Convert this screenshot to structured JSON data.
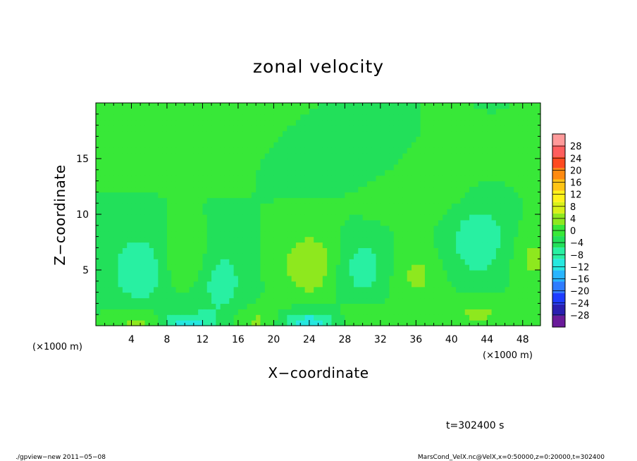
{
  "chart_data": {
    "type": "heatmap",
    "title": "zonal velocity",
    "xlabel": "X−coordinate",
    "ylabel": "Z−coordinate",
    "x_unit_label": "(×1000 m)",
    "y_unit_label": "(×1000 m)",
    "xlim": [
      0,
      50
    ],
    "ylim": [
      0,
      20
    ],
    "x_ticks": [
      4,
      8,
      12,
      16,
      20,
      24,
      28,
      32,
      36,
      40,
      44,
      48
    ],
    "x_tick_labels": [
      "4",
      "8",
      "12",
      "16",
      "20",
      "24",
      "28",
      "32",
      "36",
      "40",
      "44",
      "48"
    ],
    "y_ticks": [
      5,
      10,
      15
    ],
    "y_tick_labels": [
      "5",
      "10",
      "15"
    ],
    "colorbar": {
      "levels": [
        -32,
        -28,
        -24,
        -20,
        -16,
        -12,
        -8,
        -4,
        0,
        4,
        8,
        12,
        16,
        20,
        24,
        28,
        32
      ],
      "tick_values": [
        -28,
        -24,
        -20,
        -16,
        -12,
        -8,
        -4,
        0,
        4,
        8,
        12,
        16,
        20,
        24,
        28
      ],
      "tick_labels": [
        "−28",
        "−24",
        "−20",
        "−16",
        "−12",
        "−8",
        "−4",
        "0",
        "4",
        "8",
        "12",
        "16",
        "20",
        "24",
        "28"
      ],
      "colors": [
        "#6a1b9a",
        "#2a1fb0",
        "#1e3cff",
        "#2f7cff",
        "#28b4ff",
        "#26e8e0",
        "#28f0a2",
        "#22e05a",
        "#38e838",
        "#8ee81e",
        "#d8f018",
        "#fff21a",
        "#ffc414",
        "#ff8a10",
        "#ff4a20",
        "#ff5e5e",
        "#ff9a9a"
      ]
    },
    "field": {
      "background": 0,
      "features": [
        {
          "x": 5,
          "z": 5,
          "value": -8,
          "sx": 2.2,
          "sz": 2.2
        },
        {
          "x": 10,
          "z": 6,
          "value": 5,
          "sx": 2.0,
          "sz": 1.8
        },
        {
          "x": 14,
          "z": 4,
          "value": -6,
          "sx": 2.0,
          "sz": 2.5
        },
        {
          "x": 24,
          "z": 5.5,
          "value": 8,
          "sx": 2.2,
          "sz": 2.0
        },
        {
          "x": 30,
          "z": 5.2,
          "value": -6,
          "sx": 2.2,
          "sz": 2.0
        },
        {
          "x": 36,
          "z": 4.5,
          "value": 5,
          "sx": 2.0,
          "sz": 1.8
        },
        {
          "x": 43,
          "z": 8,
          "value": -7,
          "sx": 2.5,
          "sz": 2.8
        },
        {
          "x": 49,
          "z": 6,
          "value": 5,
          "sx": 1.6,
          "sz": 2.0
        },
        {
          "x": 5,
          "z": 0.3,
          "value": 6,
          "sx": 2.0,
          "sz": 0.8
        },
        {
          "x": 10,
          "z": 0.2,
          "value": -10,
          "sx": 2.2,
          "sz": 0.7
        },
        {
          "x": 18,
          "z": 0.4,
          "value": 5,
          "sx": 1.8,
          "sz": 0.9
        },
        {
          "x": 24,
          "z": 0.2,
          "value": -11,
          "sx": 2.2,
          "sz": 0.8
        },
        {
          "x": 30,
          "z": 0.5,
          "value": 4,
          "sx": 2.0,
          "sz": 1.0
        },
        {
          "x": 43,
          "z": 1.2,
          "value": 5,
          "sx": 2.5,
          "sz": 1.2
        },
        {
          "x": 27,
          "z": 15,
          "value": -4,
          "sx": 4.0,
          "sz": 1.5
        },
        {
          "x": 12,
          "z": 17,
          "value": 2,
          "sx": 5.0,
          "sz": 2.0
        },
        {
          "x": 38,
          "z": 12,
          "value": 3,
          "sx": 5.0,
          "sz": 2.0
        }
      ]
    }
  },
  "time_label": "t=302400 s",
  "footer_left": "./gpview−new   2011−05−08",
  "footer_right": "MarsCond_VelX.nc@VelX,x=0:50000,z=0:20000,t=302400"
}
